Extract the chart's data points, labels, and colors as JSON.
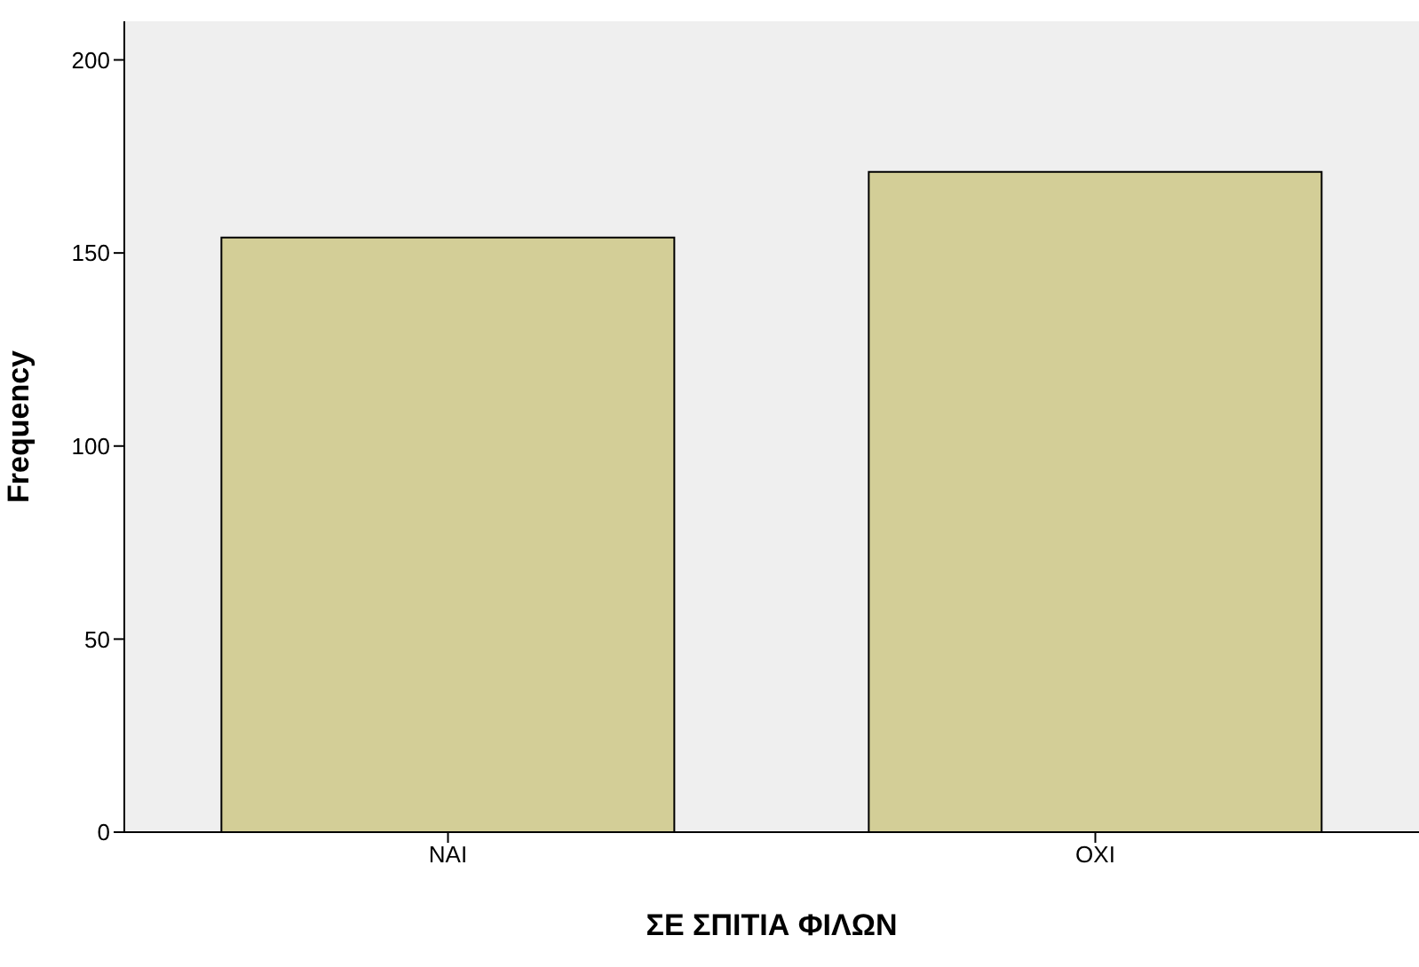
{
  "chart_data": {
    "type": "bar",
    "xlabel": "ΣΕ ΣΠΙΤΙΑ ΦΙΛΩΝ",
    "ylabel": "Frequency",
    "categories": [
      "NAI",
      "OXI"
    ],
    "values": [
      154,
      171
    ],
    "color": "#d3ce97",
    "ylim": [
      0,
      210
    ],
    "yticks": [
      0,
      50,
      100,
      150,
      200
    ],
    "grid": false
  }
}
